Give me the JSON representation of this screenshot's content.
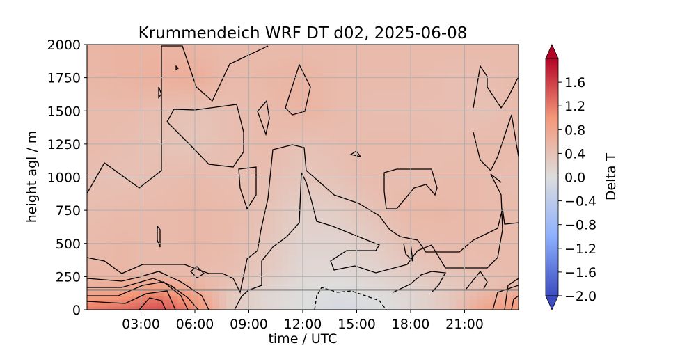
{
  "chart_data": {
    "type": "heatmap",
    "title": "Krummendeich WRF DT d02, 2025-06-08",
    "xlabel": "time / UTC",
    "ylabel": "height agl / m",
    "colorbar_label": "Delta T",
    "colormap": "coolwarm",
    "xlim": [
      0,
      24
    ],
    "ylim": [
      0,
      2000
    ],
    "x_ticks": [
      3,
      6,
      9,
      12,
      15,
      18,
      21
    ],
    "x_tick_labels": [
      "03:00",
      "06:00",
      "09:00",
      "12:00",
      "15:00",
      "18:00",
      "21:00"
    ],
    "y_ticks": [
      0,
      250,
      500,
      750,
      1000,
      1250,
      1500,
      1750,
      2000
    ],
    "y_tick_labels": [
      "0",
      "250",
      "500",
      "750",
      "1000",
      "1250",
      "1500",
      "1750",
      "2000"
    ],
    "grid": true,
    "colorbar_range": [
      -2.0,
      2.0
    ],
    "colorbar_extend": "both",
    "colorbar_ticks": [
      1.6,
      1.2,
      0.8,
      0.4,
      0.0,
      -0.4,
      -0.8,
      -1.2,
      -1.6,
      -2.0
    ],
    "colorbar_tick_labels": [
      "1.6",
      "1.2",
      "0.8",
      "0.4",
      "0.0",
      "−0.4",
      "−0.8",
      "−1.2",
      "−1.6",
      "−2.0"
    ],
    "horizontal_reference_line": 150,
    "field": {
      "x": [
        0,
        2,
        4,
        6,
        8,
        10,
        12,
        14,
        16,
        18,
        20,
        22,
        24
      ],
      "y": [
        0,
        100,
        200,
        300,
        500,
        750,
        1000,
        1250,
        1500,
        1750,
        2000
      ],
      "values": [
        [
          1.2,
          1.3,
          1.5,
          1.1,
          0.3,
          0.1,
          0.0,
          -0.1,
          -0.05,
          0.1,
          0.3,
          0.8,
          1.0
        ],
        [
          0.9,
          1.0,
          1.2,
          0.9,
          0.3,
          0.1,
          0.0,
          -0.05,
          0.0,
          0.1,
          0.3,
          0.6,
          0.8
        ],
        [
          0.6,
          0.7,
          0.8,
          0.6,
          0.4,
          0.2,
          0.05,
          0.0,
          0.1,
          0.2,
          0.3,
          0.4,
          0.5
        ],
        [
          0.55,
          0.55,
          0.5,
          0.5,
          0.45,
          0.3,
          0.1,
          0.1,
          0.15,
          0.3,
          0.4,
          0.45,
          0.5
        ],
        [
          0.5,
          0.55,
          0.5,
          0.55,
          0.5,
          0.35,
          0.15,
          0.15,
          0.25,
          0.45,
          0.5,
          0.5,
          0.5
        ],
        [
          0.45,
          0.5,
          0.5,
          0.55,
          0.5,
          0.4,
          0.2,
          0.25,
          0.4,
          0.55,
          0.55,
          0.5,
          0.5
        ],
        [
          0.45,
          0.4,
          0.45,
          0.5,
          0.45,
          0.45,
          0.35,
          0.4,
          0.5,
          0.45,
          0.5,
          0.5,
          0.45
        ],
        [
          0.5,
          0.45,
          0.4,
          0.35,
          0.45,
          0.5,
          0.4,
          0.45,
          0.5,
          0.5,
          0.45,
          0.5,
          0.5
        ],
        [
          0.5,
          0.5,
          0.45,
          0.4,
          0.45,
          0.5,
          0.6,
          0.5,
          0.45,
          0.45,
          0.45,
          0.4,
          0.5
        ],
        [
          0.55,
          0.6,
          0.65,
          0.7,
          0.5,
          0.55,
          0.6,
          0.5,
          0.5,
          0.5,
          0.45,
          0.45,
          0.5
        ],
        [
          0.55,
          0.6,
          0.6,
          0.55,
          0.5,
          0.5,
          0.5,
          0.5,
          0.5,
          0.5,
          0.5,
          0.5,
          0.5
        ]
      ]
    }
  }
}
